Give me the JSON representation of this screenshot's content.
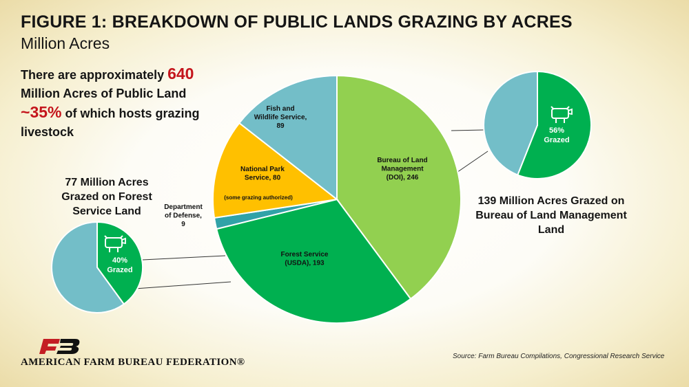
{
  "title": "FIGURE 1: BREAKDOWN OF PUBLIC LANDS GRAZING BY ACRES",
  "subtitle": "Million Acres",
  "intro": {
    "line1_text": "There are approximately ",
    "line1_value": "640",
    "line2": "Million Acres of Public Land",
    "line3_prefix": "~",
    "line3_value": "35%",
    "line3_text": " of which hosts grazing",
    "line4": "livestock"
  },
  "forest_caption": [
    "77 Million Acres",
    "Grazed on Forest",
    "Service Land"
  ],
  "blm_caption": [
    "139 Million Acres Grazed on",
    "Bureau of Land Management",
    "Land"
  ],
  "source": "Source: Farm Bureau Compilations,  Congressional Research Service",
  "logo": {
    "name": "AMERICAN FARM BUREAU FEDERATION®",
    "mark": "FB"
  },
  "colors": {
    "blm": "#92d050",
    "forest": "#00b050",
    "defense": "#31a2a8",
    "park": "#ffc000",
    "fish": "#73bec8",
    "grazed": "#00b050",
    "not_grazed": "#73bec8",
    "highlight": "#c4151c",
    "logo_red": "#c41e24"
  },
  "icons": [
    "cow-icon"
  ],
  "chart_data": [
    {
      "type": "pie",
      "title": "",
      "categories": [
        "Bureau of Land Management (DOI)",
        "Forest Service (USDA)",
        "Department of Defense",
        "National Park Service",
        "Fish and Wildlife Service"
      ],
      "values": [
        246,
        193,
        9,
        80,
        89
      ],
      "labels": [
        [
          "Bureau of Land",
          "Management",
          "(DOI), 246"
        ],
        [
          "Forest Service",
          "(USDA), 193"
        ],
        [
          "Department",
          "of Defense,",
          "9"
        ],
        [
          "National Park",
          "Service, 80"
        ],
        [
          "Fish and",
          "Wildlife Service,",
          "89"
        ]
      ],
      "annotation": "(some grazing authorized)"
    },
    {
      "type": "pie",
      "title": "",
      "categories": [
        "Grazed",
        "Not grazed"
      ],
      "values": [
        40,
        60
      ],
      "label": [
        "40%",
        "Grazed"
      ]
    },
    {
      "type": "pie",
      "title": "",
      "categories": [
        "Grazed",
        "Not grazed"
      ],
      "values": [
        56,
        44
      ],
      "label": [
        "56%",
        "Grazed"
      ]
    }
  ]
}
